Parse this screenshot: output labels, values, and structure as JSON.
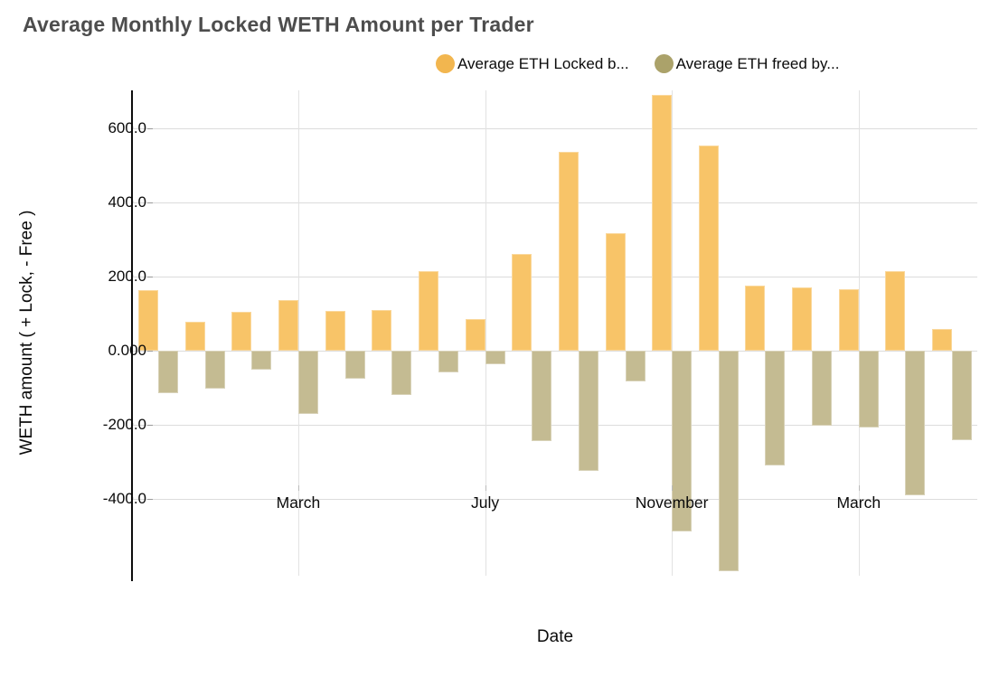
{
  "chart_data": {
    "type": "bar",
    "title": "Average Monthly Locked WETH Amount per Trader",
    "xlabel": "Date",
    "ylabel": "WETH amount ( + Lock, - Free )",
    "categories": [
      1,
      2,
      3,
      4,
      5,
      6,
      7,
      8,
      9,
      10,
      11,
      12,
      13,
      14,
      15,
      16,
      17,
      18
    ],
    "series": [
      {
        "name": "Average ETH Locked b...",
        "legend_color": "#f2b64f",
        "bar_color": "#f8c468",
        "values": [
          165,
          78,
          106,
          138,
          108,
          110,
          215,
          86,
          262,
          538,
          318,
          690,
          554,
          176,
          172,
          166,
          214,
          58
        ]
      },
      {
        "name": "Average ETH freed by...",
        "legend_color": "#aba26a",
        "bar_color": "#c4bb92",
        "values": [
          -115,
          -102,
          -50,
          -171,
          -76,
          -118,
          -59,
          -36,
          -244,
          -324,
          -82,
          -487,
          -595,
          -309,
          -201,
          -206,
          -389,
          -241
        ]
      }
    ],
    "x_ticks": [
      {
        "index": 3,
        "label": "March"
      },
      {
        "index": 7,
        "label": "July"
      },
      {
        "index": 11,
        "label": "November"
      },
      {
        "index": 15,
        "label": "March"
      }
    ],
    "y_ticks": [
      {
        "value": 600,
        "label": "600.0"
      },
      {
        "value": 400,
        "label": "400.0"
      },
      {
        "value": 200,
        "label": "200.0"
      },
      {
        "value": 0,
        "label": "0.000"
      },
      {
        "value": -200,
        "label": "-200.0"
      },
      {
        "value": -400,
        "label": "-400.0"
      }
    ],
    "ylim": [
      -607,
      703
    ],
    "grid": true,
    "legend_position": "top"
  },
  "colors": {
    "background": "#ffffff",
    "title_text": "#4d4d4d",
    "axis_text": "#0b0b0b",
    "gridline": "#dcdcdc",
    "axis_line": "#0d0d0d"
  }
}
